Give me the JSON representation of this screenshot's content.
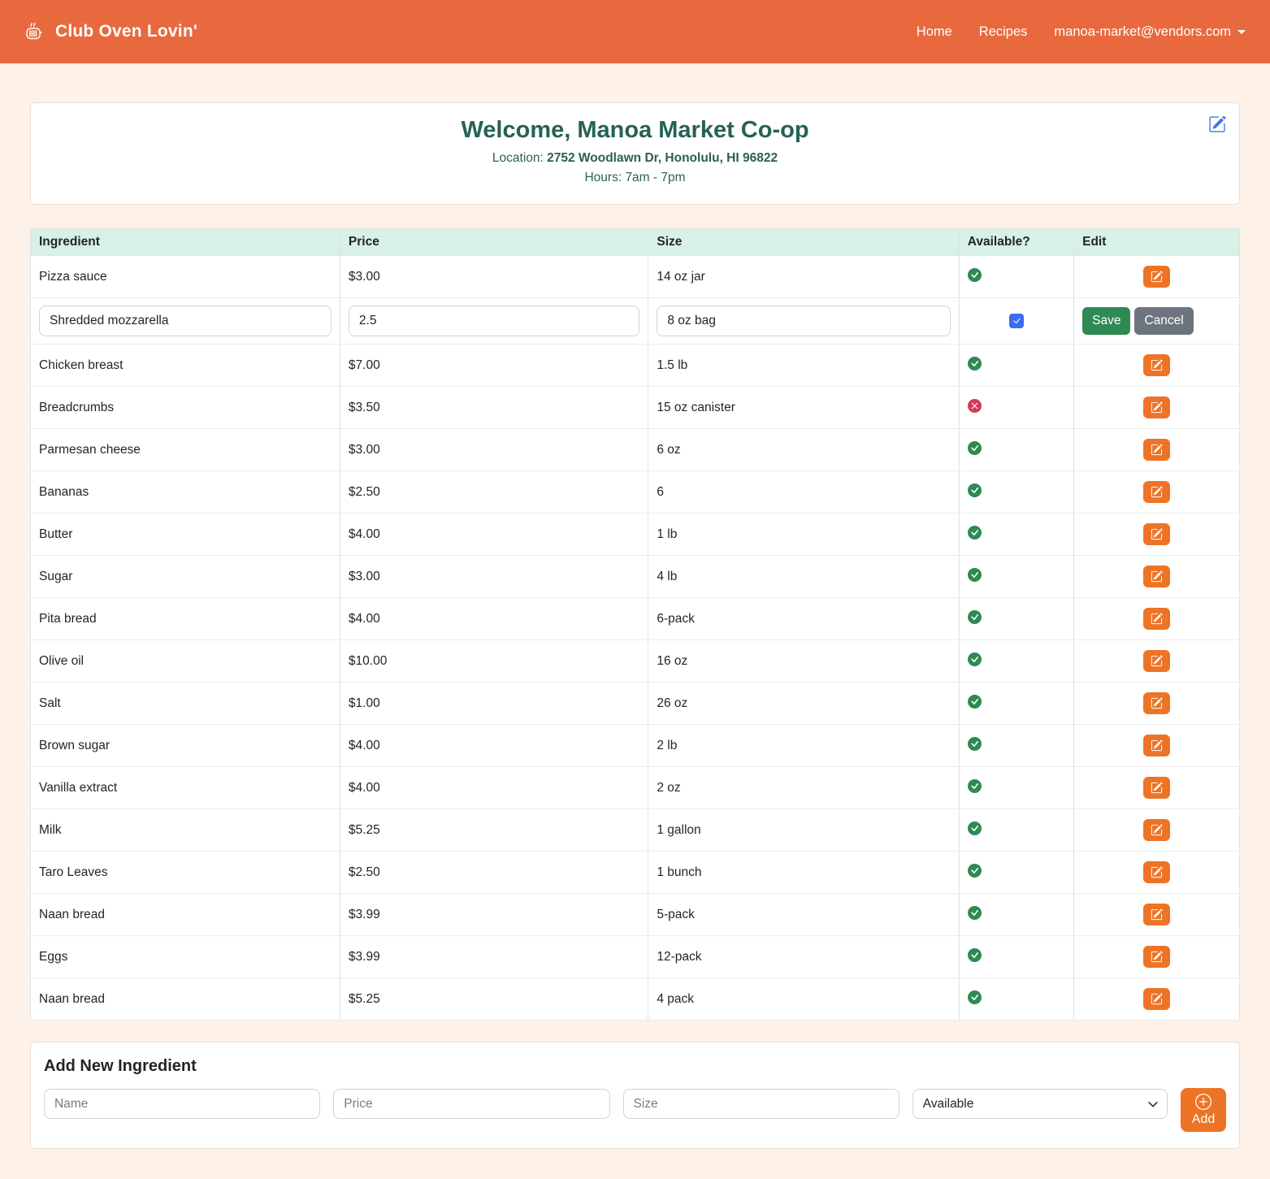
{
  "navbar": {
    "brand": "Club Oven Lovin'",
    "links": [
      {
        "label": "Home"
      },
      {
        "label": "Recipes"
      }
    ],
    "account": "manoa-market@vendors.com"
  },
  "welcome": {
    "title": "Welcome, Manoa Market Co-op",
    "location_label": "Location:",
    "location_value": "2752 Woodlawn Dr, Honolulu, HI 96822",
    "hours_label": "Hours:",
    "hours_value": "7am - 7pm"
  },
  "table": {
    "headers": [
      "Ingredient",
      "Price",
      "Size",
      "Available?",
      "Edit"
    ],
    "rows": [
      {
        "name": "Pizza sauce",
        "price": "$3.00",
        "size": "14 oz jar",
        "available": true
      },
      {
        "type": "editing",
        "name_value": "Shredded mozzarella",
        "price_value": "2.5",
        "size_value": "8 oz bag",
        "available_checked": true,
        "save_label": "Save",
        "cancel_label": "Cancel"
      },
      {
        "name": "Chicken breast",
        "price": "$7.00",
        "size": "1.5 lb",
        "available": true
      },
      {
        "name": "Breadcrumbs",
        "price": "$3.50",
        "size": "15 oz canister",
        "available": false
      },
      {
        "name": "Parmesan cheese",
        "price": "$3.00",
        "size": "6 oz",
        "available": true
      },
      {
        "name": "Bananas",
        "price": "$2.50",
        "size": "6",
        "available": true
      },
      {
        "name": "Butter",
        "price": "$4.00",
        "size": "1 lb",
        "available": true
      },
      {
        "name": "Sugar",
        "price": "$3.00",
        "size": "4 lb",
        "available": true
      },
      {
        "name": "Pita bread",
        "price": "$4.00",
        "size": "6-pack",
        "available": true
      },
      {
        "name": "Olive oil",
        "price": "$10.00",
        "size": "16 oz",
        "available": true
      },
      {
        "name": "Salt",
        "price": "$1.00",
        "size": "26 oz",
        "available": true
      },
      {
        "name": "Brown sugar",
        "price": "$4.00",
        "size": "2 lb",
        "available": true
      },
      {
        "name": "Vanilla extract",
        "price": "$4.00",
        "size": "2 oz",
        "available": true
      },
      {
        "name": "Milk",
        "price": "$5.25",
        "size": "1 gallon",
        "available": true
      },
      {
        "name": "Taro Leaves",
        "price": "$2.50",
        "size": "1 bunch",
        "available": true
      },
      {
        "name": "Naan bread",
        "price": "$3.99",
        "size": "5-pack",
        "available": true
      },
      {
        "name": "Eggs",
        "price": "$3.99",
        "size": "12-pack",
        "available": true
      },
      {
        "name": "Naan bread",
        "price": "$5.25",
        "size": "4 pack",
        "available": true
      }
    ]
  },
  "add_form": {
    "title": "Add New Ingredient",
    "name_placeholder": "Name",
    "price_placeholder": "Price",
    "size_placeholder": "Size",
    "available_selected": "Available",
    "add_label": "Add"
  },
  "colors": {
    "navbar_orange": "#e8693e",
    "button_orange": "#ed7426",
    "table_header_mint": "#d8f1e7",
    "title_teal": "#266155",
    "available_green": "#2e8a52",
    "unavailable_red": "#d23b55",
    "save_green": "#2e8a52",
    "cancel_gray": "#6c757d",
    "checkbox_blue": "#3d6af2",
    "edit_icon_blue": "#4472f0",
    "page_background": "#fdf1e8"
  }
}
